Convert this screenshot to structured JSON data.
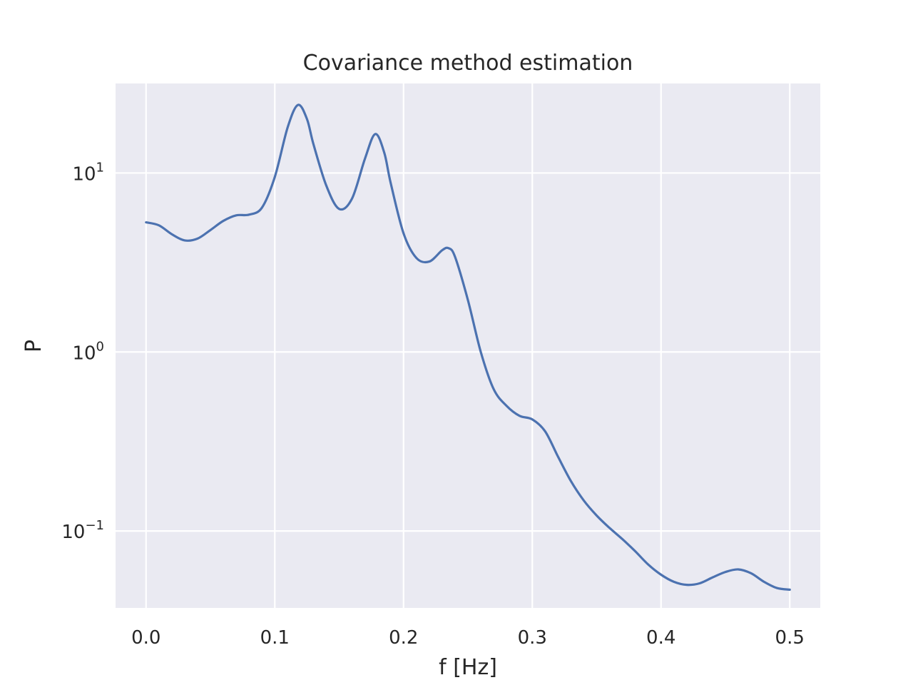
{
  "chart_data": {
    "type": "line",
    "title": "Covariance method estimation",
    "xlabel": "f [Hz]",
    "ylabel": "P",
    "xlim": [
      -0.0237,
      0.5237
    ],
    "ylim_log10": [
      -1.43,
      1.5
    ],
    "yscale": "log",
    "grid": true,
    "x_ticks": [
      0.0,
      0.1,
      0.2,
      0.3,
      0.4,
      0.5
    ],
    "x_tick_labels": [
      "0.0",
      "0.1",
      "0.2",
      "0.3",
      "0.4",
      "0.5"
    ],
    "y_ticks": [
      {
        "exp": 1,
        "base": "10",
        "sup": "1"
      },
      {
        "exp": 0,
        "base": "10",
        "sup": "0"
      },
      {
        "exp": -1,
        "base": "10",
        "sup": "−1"
      }
    ],
    "colors": {
      "background": "#eaeaf2",
      "grid": "#ffffff",
      "line": "#4c72b0",
      "text": "#262626"
    },
    "series": [
      {
        "color": "#4c72b0",
        "points": [
          [
            0.0,
            5.3
          ],
          [
            0.01,
            5.1
          ],
          [
            0.02,
            4.55
          ],
          [
            0.03,
            4.2
          ],
          [
            0.04,
            4.3
          ],
          [
            0.05,
            4.8
          ],
          [
            0.06,
            5.4
          ],
          [
            0.07,
            5.8
          ],
          [
            0.08,
            5.85
          ],
          [
            0.09,
            6.4
          ],
          [
            0.1,
            9.5
          ],
          [
            0.11,
            18
          ],
          [
            0.118,
            24
          ],
          [
            0.125,
            20
          ],
          [
            0.13,
            14.5
          ],
          [
            0.14,
            8.5
          ],
          [
            0.15,
            6.3
          ],
          [
            0.16,
            7.2
          ],
          [
            0.17,
            12
          ],
          [
            0.178,
            16.5
          ],
          [
            0.185,
            13
          ],
          [
            0.19,
            8.8
          ],
          [
            0.2,
            4.6
          ],
          [
            0.21,
            3.35
          ],
          [
            0.22,
            3.2
          ],
          [
            0.23,
            3.7
          ],
          [
            0.235,
            3.8
          ],
          [
            0.24,
            3.4
          ],
          [
            0.25,
            1.95
          ],
          [
            0.26,
            1.0
          ],
          [
            0.27,
            0.62
          ],
          [
            0.28,
            0.5
          ],
          [
            0.29,
            0.44
          ],
          [
            0.3,
            0.42
          ],
          [
            0.31,
            0.36
          ],
          [
            0.32,
            0.26
          ],
          [
            0.33,
            0.19
          ],
          [
            0.34,
            0.148
          ],
          [
            0.35,
            0.122
          ],
          [
            0.36,
            0.104
          ],
          [
            0.37,
            0.09
          ],
          [
            0.38,
            0.077
          ],
          [
            0.39,
            0.065
          ],
          [
            0.4,
            0.057
          ],
          [
            0.41,
            0.052
          ],
          [
            0.42,
            0.05
          ],
          [
            0.43,
            0.051
          ],
          [
            0.44,
            0.055
          ],
          [
            0.45,
            0.059
          ],
          [
            0.46,
            0.061
          ],
          [
            0.47,
            0.058
          ],
          [
            0.48,
            0.052
          ],
          [
            0.49,
            0.048
          ],
          [
            0.5,
            0.047
          ]
        ]
      }
    ]
  }
}
